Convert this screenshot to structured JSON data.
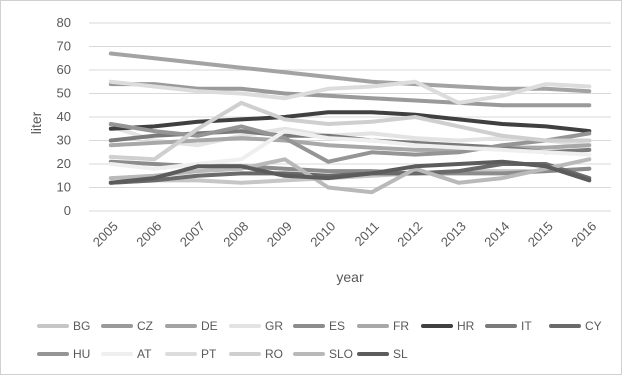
{
  "chart_data": {
    "type": "line",
    "title": "",
    "xlabel": "year",
    "ylabel": "liter",
    "x": [
      "2005",
      "2006",
      "2007",
      "2008",
      "2009",
      "2010",
      "2011",
      "2012",
      "2013",
      "2014",
      "2015",
      "2016"
    ],
    "ylim": [
      0,
      80
    ],
    "yticks": [
      "0",
      "10",
      "20",
      "30",
      "40",
      "50",
      "60",
      "70",
      "80"
    ],
    "grid": true,
    "legend_position": "bottom",
    "series": [
      {
        "name": "BG",
        "color": "#c6c6c6",
        "values": [
          12,
          13,
          13,
          12,
          13,
          14,
          15,
          16,
          17,
          17,
          17,
          18
        ]
      },
      {
        "name": "CZ",
        "color": "#9a9a9a",
        "values": [
          54,
          54,
          52,
          52,
          50,
          49,
          48,
          47,
          46,
          45,
          45,
          45
        ]
      },
      {
        "name": "DE",
        "color": "#a3a3a3",
        "values": [
          67,
          65,
          63,
          61,
          59,
          57,
          55,
          54,
          53,
          52,
          52,
          51
        ]
      },
      {
        "name": "GR",
        "color": "#e3e3e3",
        "values": [
          36,
          30,
          28,
          32,
          35,
          32,
          33,
          31,
          30,
          31,
          30,
          28
        ]
      },
      {
        "name": "ES",
        "color": "#8c8c8c",
        "values": [
          21,
          20,
          19,
          19,
          18,
          17,
          17,
          16,
          16,
          16,
          17,
          18
        ]
      },
      {
        "name": "FR",
        "color": "#a8a8a8",
        "values": [
          28,
          29,
          30,
          31,
          30,
          28,
          27,
          26,
          26,
          27,
          27,
          28
        ]
      },
      {
        "name": "HR",
        "color": "#404040",
        "values": [
          35,
          36,
          38,
          39,
          40,
          42,
          42,
          41,
          39,
          37,
          36,
          34
        ]
      },
      {
        "name": "IT",
        "color": "#7a7a7a",
        "values": [
          30,
          32,
          33,
          34,
          32,
          32,
          30,
          29,
          28,
          27,
          25,
          26
        ]
      },
      {
        "name": "CY",
        "color": "#6a6a6a",
        "values": [
          12,
          13,
          15,
          16,
          16,
          15,
          16,
          16,
          17,
          20,
          20,
          14
        ]
      },
      {
        "name": "HU",
        "color": "#959595",
        "values": [
          37,
          34,
          32,
          36,
          31,
          21,
          25,
          24,
          25,
          28,
          30,
          33
        ]
      },
      {
        "name": "AT",
        "color": "#efefef",
        "values": [
          20,
          18,
          20,
          22,
          34,
          31,
          30,
          28,
          27,
          26,
          25,
          24
        ]
      },
      {
        "name": "PT",
        "color": "#dcdcdc",
        "values": [
          55,
          53,
          51,
          50,
          48,
          52,
          53,
          55,
          46,
          49,
          54,
          53
        ]
      },
      {
        "name": "RO",
        "color": "#cfcfcf",
        "values": [
          23,
          22,
          35,
          46,
          39,
          37,
          38,
          40,
          36,
          32,
          30,
          30
        ]
      },
      {
        "name": "SLO",
        "color": "#b9b9b9",
        "values": [
          14,
          15,
          17,
          18,
          22,
          10,
          8,
          18,
          12,
          14,
          18,
          22
        ]
      },
      {
        "name": "SL",
        "color": "#5c5c5c",
        "values": [
          12,
          14,
          19,
          19,
          15,
          14,
          16,
          19,
          20,
          21,
          19,
          13
        ]
      }
    ]
  }
}
